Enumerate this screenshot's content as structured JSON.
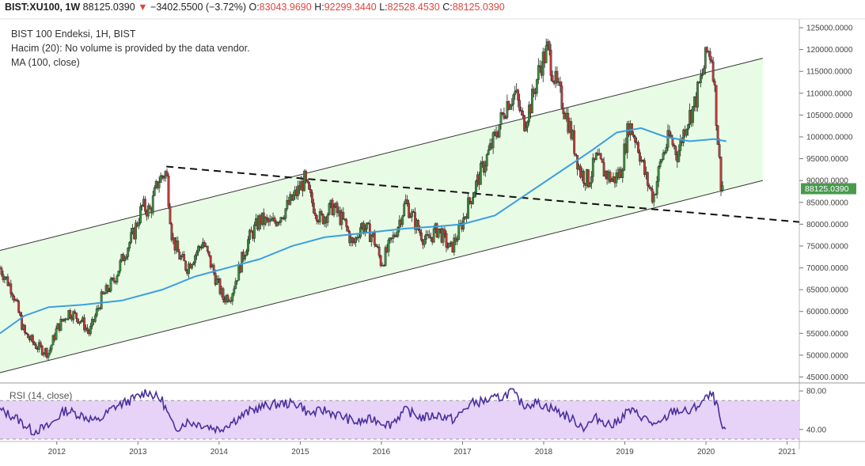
{
  "header": {
    "symbol": "BIST:XU100, 1W",
    "last": "88125.0390",
    "arrow": "▼",
    "change": "−3402.5500 (−3.72%)",
    "o_label": "O:",
    "o_value": "83043.9690",
    "h_label": "H:",
    "h_value": "92299.3440",
    "l_label": "L:",
    "l_value": "82528.4530",
    "c_label": "C:",
    "c_value": "88125.0390"
  },
  "legend": {
    "line1": "BIST 100 Endeksi, 1H, BIST",
    "line2": "Hacim (20): No volume is provided by the data vendor.",
    "line3": "MA (100, close)"
  },
  "rsi_label": "RSI (14, close)",
  "price_label": "88125.0390",
  "colors": {
    "up": "#3d8c3f",
    "down": "#c03a3a",
    "ma": "#3aa0e0",
    "channel_fill": "#e8fbe4",
    "rsi_line": "#4a2f9e",
    "rsi_band": "#e6d3f7",
    "price_tag": "#4a9a4e",
    "negative": "#e0443e"
  },
  "chart_data": {
    "type": "candlestick",
    "y_ticks": [
      "45000.0000",
      "50000.0000",
      "55000.0000",
      "60000.0000",
      "65000.0000",
      "70000.0000",
      "75000.0000",
      "80000.0000",
      "85000.0000",
      "90000.0000",
      "95000.0000",
      "100000.0000",
      "105000.0000",
      "110000.0000",
      "115000.0000",
      "120000.0000",
      "125000.0000"
    ],
    "x_ticks": [
      "2012",
      "2013",
      "2014",
      "2015",
      "2016",
      "2017",
      "2018",
      "2019",
      "2020",
      "2021"
    ],
    "rsi_ticks": [
      "80.00",
      "40.00"
    ],
    "ylim": [
      44000,
      127000
    ],
    "xlim": [
      2011.3,
      2021.15
    ],
    "price_path": [
      [
        2011.3,
        70000
      ],
      [
        2011.45,
        65000
      ],
      [
        2011.6,
        55000
      ],
      [
        2011.75,
        52000
      ],
      [
        2011.9,
        50500
      ],
      [
        2012.0,
        56000
      ],
      [
        2012.15,
        60000
      ],
      [
        2012.3,
        58000
      ],
      [
        2012.4,
        55000
      ],
      [
        2012.55,
        63000
      ],
      [
        2012.7,
        67000
      ],
      [
        2012.85,
        74000
      ],
      [
        2012.95,
        78000
      ],
      [
        2013.05,
        84000
      ],
      [
        2013.15,
        83000
      ],
      [
        2013.25,
        90000
      ],
      [
        2013.35,
        92000
      ],
      [
        2013.42,
        77000
      ],
      [
        2013.5,
        73000
      ],
      [
        2013.6,
        70000
      ],
      [
        2013.7,
        73000
      ],
      [
        2013.8,
        76000
      ],
      [
        2013.95,
        68000
      ],
      [
        2014.05,
        63000
      ],
      [
        2014.15,
        64000
      ],
      [
        2014.25,
        70000
      ],
      [
        2014.35,
        76000
      ],
      [
        2014.5,
        81000
      ],
      [
        2014.65,
        80000
      ],
      [
        2014.8,
        83000
      ],
      [
        2014.95,
        87000
      ],
      [
        2015.05,
        90000
      ],
      [
        2015.12,
        86000
      ],
      [
        2015.25,
        81000
      ],
      [
        2015.4,
        84000
      ],
      [
        2015.55,
        80000
      ],
      [
        2015.65,
        75000
      ],
      [
        2015.75,
        80000
      ],
      [
        2015.9,
        77000
      ],
      [
        2016.0,
        71000
      ],
      [
        2016.15,
        77000
      ],
      [
        2016.3,
        85000
      ],
      [
        2016.45,
        79000
      ],
      [
        2016.55,
        76000
      ],
      [
        2016.7,
        79000
      ],
      [
        2016.85,
        74000
      ],
      [
        2016.95,
        78000
      ],
      [
        2017.1,
        86000
      ],
      [
        2017.25,
        93000
      ],
      [
        2017.4,
        100000
      ],
      [
        2017.55,
        108000
      ],
      [
        2017.65,
        110000
      ],
      [
        2017.75,
        103000
      ],
      [
        2017.85,
        108000
      ],
      [
        2017.95,
        116000
      ],
      [
        2018.05,
        120000
      ],
      [
        2018.15,
        112000
      ],
      [
        2018.25,
        107000
      ],
      [
        2018.35,
        100000
      ],
      [
        2018.45,
        92000
      ],
      [
        2018.55,
        90000
      ],
      [
        2018.65,
        95000
      ],
      [
        2018.75,
        92000
      ],
      [
        2018.85,
        90000
      ],
      [
        2018.95,
        92000
      ],
      [
        2019.05,
        103000
      ],
      [
        2019.15,
        99000
      ],
      [
        2019.25,
        91000
      ],
      [
        2019.35,
        86000
      ],
      [
        2019.45,
        95000
      ],
      [
        2019.55,
        100000
      ],
      [
        2019.65,
        96000
      ],
      [
        2019.75,
        103000
      ],
      [
        2019.85,
        107000
      ],
      [
        2019.95,
        114000
      ],
      [
        2020.02,
        120000
      ],
      [
        2020.08,
        118000
      ],
      [
        2020.13,
        104000
      ],
      [
        2020.18,
        90000
      ],
      [
        2020.22,
        88125
      ]
    ],
    "ma100_path": [
      [
        2011.3,
        55000
      ],
      [
        2011.6,
        59000
      ],
      [
        2011.9,
        61000
      ],
      [
        2012.3,
        61500
      ],
      [
        2012.8,
        62500
      ],
      [
        2013.3,
        65000
      ],
      [
        2013.7,
        68000
      ],
      [
        2014.1,
        70000
      ],
      [
        2014.5,
        72000
      ],
      [
        2014.9,
        75000
      ],
      [
        2015.3,
        77000
      ],
      [
        2015.8,
        78000
      ],
      [
        2016.3,
        79000
      ],
      [
        2016.7,
        79500
      ],
      [
        2017.0,
        80000
      ],
      [
        2017.4,
        82000
      ],
      [
        2017.8,
        87000
      ],
      [
        2018.2,
        92000
      ],
      [
        2018.6,
        97000
      ],
      [
        2018.9,
        101000
      ],
      [
        2019.2,
        102000
      ],
      [
        2019.5,
        100000
      ],
      [
        2019.8,
        99000
      ],
      [
        2020.1,
        99500
      ],
      [
        2020.25,
        99000
      ]
    ],
    "rsi_path": [
      [
        2011.3,
        60
      ],
      [
        2011.5,
        52
      ],
      [
        2011.7,
        38
      ],
      [
        2011.9,
        43
      ],
      [
        2012.1,
        60
      ],
      [
        2012.3,
        55
      ],
      [
        2012.5,
        48
      ],
      [
        2012.7,
        63
      ],
      [
        2012.9,
        70
      ],
      [
        2013.05,
        76
      ],
      [
        2013.1,
        80
      ],
      [
        2013.3,
        70
      ],
      [
        2013.45,
        40
      ],
      [
        2013.6,
        48
      ],
      [
        2013.8,
        45
      ],
      [
        2014.0,
        40
      ],
      [
        2014.2,
        50
      ],
      [
        2014.4,
        60
      ],
      [
        2014.6,
        65
      ],
      [
        2014.8,
        67
      ],
      [
        2015.0,
        66
      ],
      [
        2015.1,
        56
      ],
      [
        2015.3,
        60
      ],
      [
        2015.5,
        54
      ],
      [
        2015.7,
        47
      ],
      [
        2015.9,
        51
      ],
      [
        2016.1,
        45
      ],
      [
        2016.3,
        60
      ],
      [
        2016.5,
        52
      ],
      [
        2016.7,
        55
      ],
      [
        2016.9,
        50
      ],
      [
        2017.1,
        67
      ],
      [
        2017.3,
        70
      ],
      [
        2017.5,
        74
      ],
      [
        2017.6,
        80
      ],
      [
        2017.75,
        65
      ],
      [
        2017.9,
        68
      ],
      [
        2018.1,
        62
      ],
      [
        2018.3,
        53
      ],
      [
        2018.5,
        42
      ],
      [
        2018.65,
        52
      ],
      [
        2018.85,
        44
      ],
      [
        2019.05,
        60
      ],
      [
        2019.2,
        54
      ],
      [
        2019.4,
        43
      ],
      [
        2019.6,
        60
      ],
      [
        2019.8,
        58
      ],
      [
        2020.0,
        72
      ],
      [
        2020.08,
        76
      ],
      [
        2020.15,
        60
      ],
      [
        2020.2,
        40
      ],
      [
        2020.25,
        35
      ]
    ],
    "rsi_lim": [
      30,
      85
    ],
    "rsi_band": [
      30,
      70
    ]
  }
}
